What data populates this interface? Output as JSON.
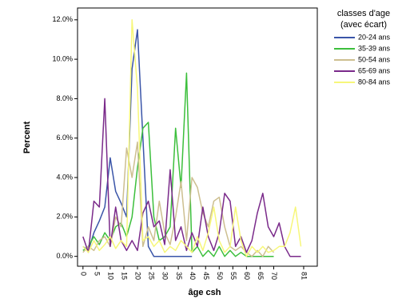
{
  "chart_data": {
    "type": "line",
    "x_label": "âge csh",
    "y_label": "Percent",
    "legend_title": [
      "classes d'age",
      "(avec écart)"
    ],
    "x": [
      0,
      2,
      4,
      6,
      8,
      10,
      12,
      14,
      16,
      18,
      20,
      22,
      24,
      26,
      28,
      30,
      32,
      34,
      36,
      38,
      40,
      42,
      44,
      46,
      48,
      50,
      52,
      54,
      56,
      58,
      60,
      62,
      64,
      66,
      68,
      70,
      72,
      74,
      76,
      78,
      80
    ],
    "series": [
      {
        "name": "20-24 ans",
        "color": "#3a55a8",
        "values": [
          0.5,
          0.3,
          1.2,
          1.8,
          2.5,
          5.0,
          3.3,
          2.7,
          2.0,
          9.5,
          11.5,
          6.0,
          0.5,
          0,
          0,
          0,
          0,
          0,
          0,
          0,
          0,
          null,
          null,
          null,
          null,
          null,
          null,
          null,
          null,
          null,
          null,
          null,
          null,
          null,
          null,
          null,
          null,
          null,
          null,
          null,
          null
        ]
      },
      {
        "name": "35-39 ans",
        "color": "#3cbf3c",
        "values": [
          0.3,
          0.5,
          1.0,
          0.6,
          1.2,
          0.8,
          1.5,
          1.7,
          1.0,
          2.0,
          4.5,
          6.5,
          6.8,
          2.0,
          0.8,
          1.0,
          1.5,
          6.5,
          3.5,
          9.3,
          0.2,
          0.5,
          0,
          0.3,
          0,
          0.5,
          0,
          0.3,
          0,
          0.2,
          0,
          0,
          0,
          0,
          0,
          0,
          null,
          null,
          null,
          null,
          null
        ]
      },
      {
        "name": "50-54 ans",
        "color": "#cdbf90",
        "values": [
          0.2,
          0.5,
          0.3,
          0.8,
          1.0,
          0.5,
          2.0,
          1.5,
          5.5,
          4.0,
          5.8,
          0.5,
          1.5,
          0.8,
          2.8,
          1.2,
          0.6,
          2.0,
          3.8,
          0.8,
          4.0,
          3.5,
          2.2,
          1.5,
          2.8,
          3.0,
          1.5,
          0.5,
          0.3,
          0.5,
          0.2,
          0,
          0.3,
          0,
          0.5,
          0.2,
          null,
          null,
          null,
          null,
          null
        ]
      },
      {
        "name": "65-69 ans",
        "color": "#7a2a8a",
        "values": [
          1.0,
          0.2,
          2.8,
          2.5,
          8.0,
          0.5,
          2.5,
          0.8,
          0.3,
          0.8,
          0.3,
          2.2,
          2.8,
          1.5,
          1.8,
          0.6,
          4.4,
          0.8,
          1.5,
          0.3,
          1.2,
          0.5,
          2.5,
          1.0,
          0.3,
          1.2,
          3.2,
          2.8,
          0.5,
          1.0,
          0.2,
          0.8,
          2.2,
          3.2,
          1.5,
          1.0,
          1.7,
          0.5,
          0,
          0,
          0
        ]
      },
      {
        "name": "80-84 ans",
        "color": "#f7f77a",
        "values": [
          0.5,
          0.2,
          0.8,
          0.3,
          0.6,
          1.0,
          0.4,
          0.8,
          0.5,
          12.0,
          8.5,
          0.8,
          1.0,
          0.5,
          0.8,
          0.2,
          0.5,
          0.3,
          0.8,
          0.5,
          0.2,
          1.0,
          0.3,
          1.2,
          2.5,
          0.8,
          0.2,
          0.5,
          2.5,
          0.8,
          0,
          0.5,
          0.2,
          0.5,
          0.2,
          0.3,
          0.5,
          0.5,
          1.2,
          2.5,
          0.5
        ]
      }
    ],
    "xlim": [
      -2,
      86
    ],
    "xticks": [
      0,
      5,
      10,
      15,
      20,
      25,
      30,
      35,
      40,
      45,
      50,
      55,
      60,
      65,
      70,
      81
    ],
    "ylim": [
      -0.5,
      12.6
    ],
    "yticks": [
      {
        "value": 0,
        "label": "0.0%"
      },
      {
        "value": 2,
        "label": "2.0%"
      },
      {
        "value": 4,
        "label": "4.0%"
      },
      {
        "value": 6,
        "label": "6.0%"
      },
      {
        "value": 8,
        "label": "8.0%"
      },
      {
        "value": 10,
        "label": "10.0%"
      },
      {
        "value": 12,
        "label": "12.0%"
      }
    ]
  }
}
